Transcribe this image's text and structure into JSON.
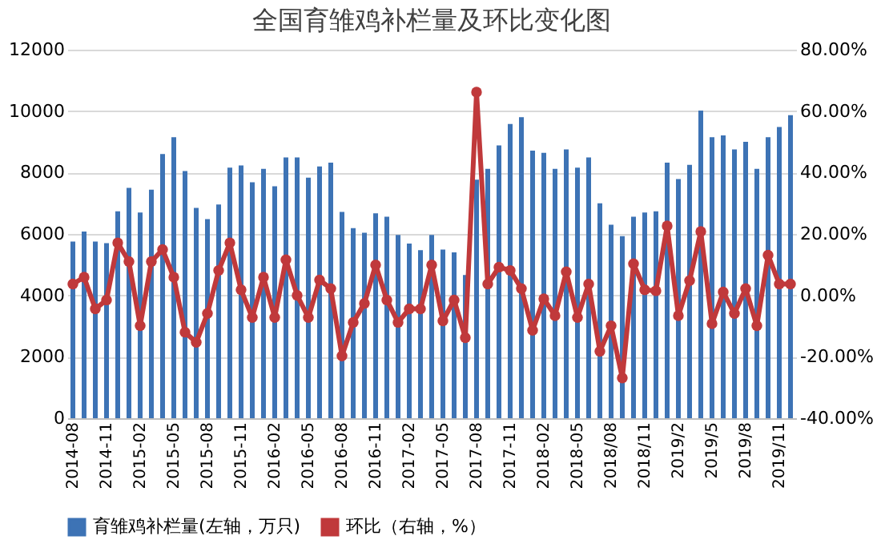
{
  "chart_data": {
    "type": "bar",
    "title": "全国育雏鸡补栏量及环比变化图",
    "categories": [
      "2014-08",
      null,
      null,
      "2014-11",
      null,
      null,
      "2015-02",
      null,
      null,
      "2015-05",
      null,
      null,
      "2015-08",
      null,
      null,
      "2015-11",
      null,
      null,
      "2016-02",
      null,
      null,
      "2016-05",
      null,
      null,
      "2016-08",
      null,
      null,
      "2016-11",
      null,
      null,
      "2017-02",
      null,
      null,
      "2017-05",
      null,
      null,
      "2017-08",
      null,
      null,
      "2017-11",
      null,
      null,
      "2018-02",
      null,
      null,
      "2018-05",
      null,
      null,
      "2018/08",
      null,
      null,
      "2018/11",
      null,
      null,
      "2019/2",
      null,
      null,
      "2019/5",
      null,
      null,
      "2019/8",
      null,
      null,
      "2019/11",
      null
    ],
    "series": [
      {
        "name": "育雏鸡补栏量(左轴，万只)",
        "color": "#3d73b5",
        "values": [
          5750,
          6080,
          5750,
          5700,
          6740,
          7500,
          6700,
          7440,
          8600,
          9150,
          8050,
          6850,
          6480,
          6960,
          8160,
          8230,
          7680,
          8120,
          7550,
          8490,
          8490,
          7830,
          8200,
          8320,
          6720,
          6190,
          6040,
          6670,
          6560,
          5970,
          5690,
          5470,
          5970,
          5490,
          5400,
          4660,
          7770,
          8120,
          8880,
          9580,
          9800,
          8710,
          8640,
          8120,
          8750,
          8160,
          8490,
          7000,
          6300,
          5930,
          6560,
          6700,
          6740,
          8320,
          7790,
          8250,
          10020,
          9150,
          9210,
          8750,
          9000,
          8120,
          9150,
          9480,
          9870
        ]
      },
      {
        "name": "环比（右轴，%）",
        "type": "line",
        "axis": "y2",
        "color": "#c0393b",
        "marker": "circle",
        "values": [
          3.7,
          5.9,
          -4.4,
          -1.5,
          17.1,
          11,
          -9.9,
          11,
          14.9,
          5.9,
          -12,
          -15.3,
          -5.9,
          8.1,
          17.1,
          1.8,
          -7.2,
          5.9,
          -7.2,
          11.6,
          0,
          -7.2,
          5,
          2.2,
          -19.7,
          -8.8,
          -2.6,
          9.9,
          -1.5,
          -8.8,
          -4.4,
          -4.4,
          9.9,
          -8.3,
          -1.5,
          -13.8,
          66.2,
          3.7,
          9.2,
          8.1,
          2.2,
          -11.4,
          -1.1,
          -6.6,
          7.7,
          -7.2,
          3.7,
          -18.2,
          -9.9,
          -26.9,
          10.3,
          1.8,
          1.5,
          22.6,
          -6.6,
          4.8,
          20.8,
          -9.2,
          1.1,
          -5.9,
          2.2,
          -9.9,
          13.1,
          3.7,
          3.7
        ]
      }
    ],
    "ylim": [
      0,
      12000
    ],
    "yticks": [
      0,
      2000,
      4000,
      6000,
      8000,
      10000,
      12000
    ],
    "y2lim": [
      -40,
      80
    ],
    "y2ticks": [
      {
        "value": -40,
        "label": "-40.00%"
      },
      {
        "value": -20,
        "label": "-20.00%"
      },
      {
        "value": 0,
        "label": "0.00%"
      },
      {
        "value": 20,
        "label": "20.00%"
      },
      {
        "value": 40,
        "label": "40.00%"
      },
      {
        "value": 60,
        "label": "60.00%"
      },
      {
        "value": 80,
        "label": "80.00%"
      }
    ],
    "grid": "y",
    "legend": "bottom"
  }
}
